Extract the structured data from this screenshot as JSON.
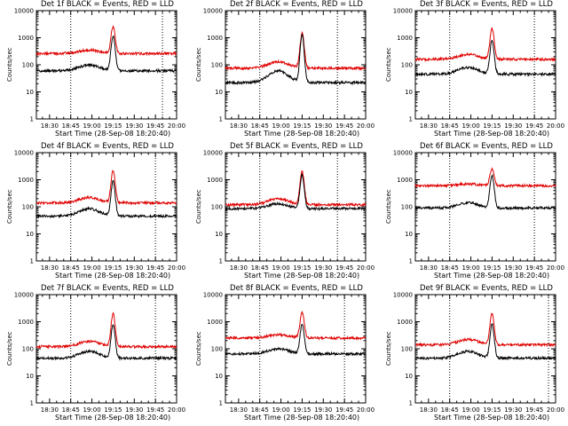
{
  "colors": {
    "events": "#000000",
    "lld": "#e00000"
  },
  "chart_data": [
    {
      "type": "line",
      "title": "Det 1f BLACK = Events, RED = LLD",
      "xlabel": "Start Time (28-Sep-08 18:20:40)",
      "ylabel": "Counts/sec",
      "y_scale": "log",
      "ylim": [
        1,
        10000
      ],
      "y_ticks": [
        "1",
        "10",
        "100",
        "1000",
        "10000"
      ],
      "x_ticks": [
        "18:30",
        "18:45",
        "19:00",
        "19:15",
        "19:30",
        "19:45",
        "20:00"
      ],
      "xlim": [
        "18:20:40",
        "20:00"
      ],
      "markers": [
        "18:45",
        "19:50"
      ],
      "series": [
        {
          "name": "Events",
          "color": "#000000",
          "baseline": 60,
          "bump": 100,
          "peak": 1200
        },
        {
          "name": "LLD",
          "color": "#e00000",
          "baseline": 260,
          "bump": 350,
          "peak": 2600
        }
      ]
    },
    {
      "type": "line",
      "title": "Det 2f BLACK = Events, RED = LLD",
      "xlabel": "Start Time (28-Sep-08 18:20:40)",
      "ylabel": "Counts/sec",
      "y_scale": "log",
      "ylim": [
        1,
        10000
      ],
      "y_ticks": [
        "1",
        "10",
        "100",
        "1000",
        "10000"
      ],
      "x_ticks": [
        "18:30",
        "18:45",
        "19:00",
        "19:15",
        "19:30",
        "19:45",
        "20:00"
      ],
      "xlim": [
        "18:20:40",
        "20:00"
      ],
      "markers": [
        "18:45",
        "19:40"
      ],
      "series": [
        {
          "name": "Events",
          "color": "#000000",
          "baseline": 22,
          "bump": 60,
          "peak": 1400
        },
        {
          "name": "LLD",
          "color": "#e00000",
          "baseline": 75,
          "bump": 130,
          "peak": 1500
        }
      ]
    },
    {
      "type": "line",
      "title": "Det 3f BLACK = Events, RED = LLD",
      "xlabel": "Start Time (28-Sep-08 18:20:40)",
      "ylabel": "Counts/sec",
      "y_scale": "log",
      "ylim": [
        1,
        10000
      ],
      "y_ticks": [
        "1",
        "10",
        "100",
        "1000",
        "10000"
      ],
      "x_ticks": [
        "18:30",
        "18:45",
        "19:00",
        "19:15",
        "19:30",
        "19:45",
        "20:00"
      ],
      "xlim": [
        "18:20:40",
        "20:00"
      ],
      "markers": [
        "18:45",
        "19:45"
      ],
      "series": [
        {
          "name": "Events",
          "color": "#000000",
          "baseline": 45,
          "bump": 80,
          "peak": 800
        },
        {
          "name": "LLD",
          "color": "#e00000",
          "baseline": 160,
          "bump": 240,
          "peak": 2200
        }
      ]
    },
    {
      "type": "line",
      "title": "Det 4f BLACK = Events, RED = LLD",
      "xlabel": "Start Time (28-Sep-08 18:20:40)",
      "ylabel": "Counts/sec",
      "y_scale": "log",
      "ylim": [
        1,
        10000
      ],
      "y_ticks": [
        "1",
        "10",
        "100",
        "1000",
        "10000"
      ],
      "x_ticks": [
        "18:30",
        "18:45",
        "19:00",
        "19:15",
        "19:30",
        "19:45",
        "20:00"
      ],
      "xlim": [
        "18:20:40",
        "20:00"
      ],
      "markers": [
        "18:45",
        "19:45"
      ],
      "series": [
        {
          "name": "Events",
          "color": "#000000",
          "baseline": 45,
          "bump": 85,
          "peak": 900
        },
        {
          "name": "LLD",
          "color": "#e00000",
          "baseline": 140,
          "bump": 220,
          "peak": 2200
        }
      ]
    },
    {
      "type": "line",
      "title": "Det 5f BLACK = Events, RED = LLD",
      "xlabel": "Start Time (28-Sep-08 18:20:40)",
      "ylabel": "Counts/sec",
      "y_scale": "log",
      "ylim": [
        1,
        10000
      ],
      "y_ticks": [
        "1",
        "10",
        "100",
        "1000",
        "10000"
      ],
      "x_ticks": [
        "18:30",
        "18:45",
        "19:00",
        "19:15",
        "19:30",
        "19:45",
        "20:00"
      ],
      "xlim": [
        "18:20:40",
        "20:00"
      ],
      "markers": [
        "18:45",
        "19:40"
      ],
      "series": [
        {
          "name": "Events",
          "color": "#000000",
          "baseline": 85,
          "bump": 130,
          "peak": 1500
        },
        {
          "name": "LLD",
          "color": "#e00000",
          "baseline": 120,
          "bump": 200,
          "peak": 2000
        }
      ]
    },
    {
      "type": "line",
      "title": "Det 6f BLACK = Events, RED = LLD",
      "xlabel": "Start Time (28-Sep-08 18:20:40)",
      "ylabel": "Counts/sec",
      "y_scale": "log",
      "ylim": [
        1,
        10000
      ],
      "y_ticks": [
        "1",
        "10",
        "100",
        "1000",
        "10000"
      ],
      "x_ticks": [
        "18:30",
        "18:45",
        "19:00",
        "19:15",
        "19:30",
        "19:45",
        "20:00"
      ],
      "xlim": [
        "18:20:40",
        "20:00"
      ],
      "markers": [
        "18:45",
        "19:45"
      ],
      "series": [
        {
          "name": "Events",
          "color": "#000000",
          "baseline": 90,
          "bump": 140,
          "peak": 1500
        },
        {
          "name": "LLD",
          "color": "#e00000",
          "baseline": 600,
          "bump": 700,
          "peak": 2600
        }
      ]
    },
    {
      "type": "line",
      "title": "Det 7f BLACK = Events, RED = LLD",
      "xlabel": "Start Time (28-Sep-08 18:20:40)",
      "ylabel": "Counts/sec",
      "y_scale": "log",
      "ylim": [
        1,
        10000
      ],
      "y_ticks": [
        "1",
        "10",
        "100",
        "1000",
        "10000"
      ],
      "x_ticks": [
        "18:30",
        "18:45",
        "19:00",
        "19:15",
        "19:30",
        "19:45",
        "20:00"
      ],
      "xlim": [
        "18:20:40",
        "20:00"
      ],
      "markers": [
        "18:45",
        "19:45"
      ],
      "series": [
        {
          "name": "Events",
          "color": "#000000",
          "baseline": 45,
          "bump": 80,
          "peak": 800
        },
        {
          "name": "LLD",
          "color": "#e00000",
          "baseline": 120,
          "bump": 190,
          "peak": 2000
        }
      ]
    },
    {
      "type": "line",
      "title": "Det 8f BLACK = Events, RED = LLD",
      "xlabel": "Start Time (28-Sep-08 18:20:40)",
      "ylabel": "Counts/sec",
      "y_scale": "log",
      "ylim": [
        1,
        10000
      ],
      "y_ticks": [
        "1",
        "10",
        "100",
        "1000",
        "10000"
      ],
      "x_ticks": [
        "18:30",
        "18:45",
        "19:00",
        "19:15",
        "19:30",
        "19:45",
        "20:00"
      ],
      "xlim": [
        "18:20:40",
        "20:00"
      ],
      "markers": [
        "18:45",
        "19:45"
      ],
      "series": [
        {
          "name": "Events",
          "color": "#000000",
          "baseline": 65,
          "bump": 100,
          "peak": 800
        },
        {
          "name": "LLD",
          "color": "#e00000",
          "baseline": 250,
          "bump": 330,
          "peak": 2200
        }
      ]
    },
    {
      "type": "line",
      "title": "Det 9f BLACK = Events, RED = LLD",
      "xlabel": "Start Time (28-Sep-08 18:20:40)",
      "ylabel": "Counts/sec",
      "y_scale": "log",
      "ylim": [
        1,
        10000
      ],
      "y_ticks": [
        "1",
        "10",
        "100",
        "1000",
        "10000"
      ],
      "x_ticks": [
        "18:30",
        "18:45",
        "19:00",
        "19:15",
        "19:30",
        "19:45",
        "20:00"
      ],
      "xlim": [
        "18:20:40",
        "20:00"
      ],
      "markers": [
        "18:45",
        "19:55"
      ],
      "series": [
        {
          "name": "Events",
          "color": "#000000",
          "baseline": 45,
          "bump": 80,
          "peak": 800
        },
        {
          "name": "LLD",
          "color": "#e00000",
          "baseline": 140,
          "bump": 220,
          "peak": 2000
        }
      ]
    }
  ]
}
